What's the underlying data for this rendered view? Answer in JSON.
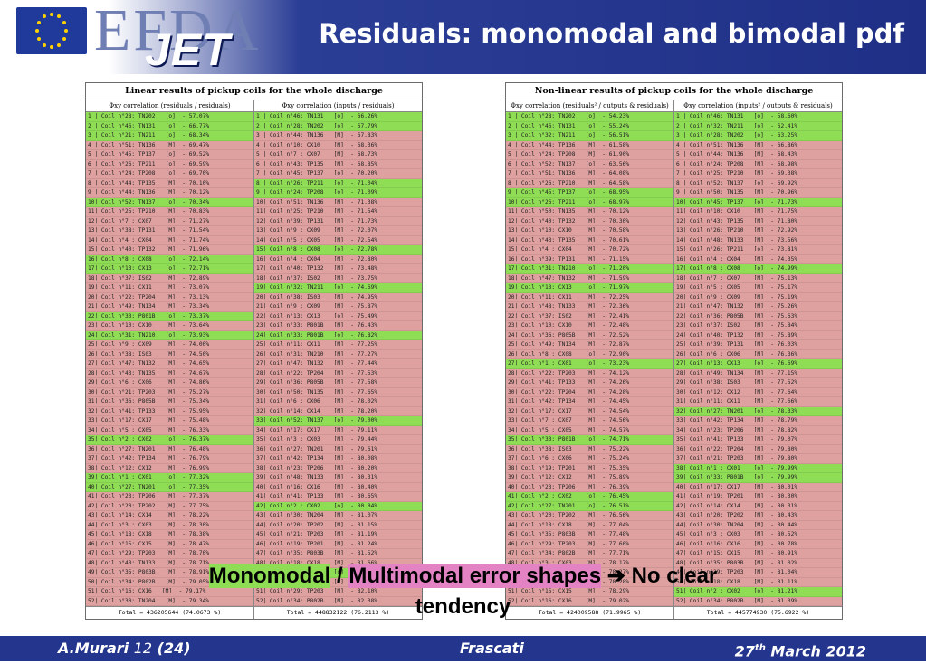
{
  "header": {
    "title": "Residuals: monomodal and bimodal pdf",
    "logo_efda": "EFDA",
    "logo_jet": "JET"
  },
  "left_table": {
    "title": "Linear results of pickup coils for the whole discharge",
    "col1": "Φxy correlation (residuals / residuals)",
    "col2": "Φxy correlation (inputs / residuals)",
    "rows1": [
      [
        "g",
        "1 | Coil n°28: TN202   [o]  - 57.07%"
      ],
      [
        "g",
        "2 | Coil n°46: TN131   [o]  - 66.77%"
      ],
      [
        "g",
        "3 | Coil n°21: TN211   [o]  - 68.34%"
      ],
      [
        "p",
        "4 | Coil n°51: TN136   [M]  - 69.47%"
      ],
      [
        "p",
        "5 | Coil n°45: TP137   [o]  - 69.52%"
      ],
      [
        "p",
        "6 | Coil n°26: TP211   [o]  - 69.59%"
      ],
      [
        "p",
        "7 | Coil n°24: TP208   [o]  - 69.70%"
      ],
      [
        "p",
        "8 | Coil n°44: TP135   [M]  - 70.10%"
      ],
      [
        "p",
        "9 | Coil n°44: TN136   [M]  - 70.12%"
      ],
      [
        "g",
        "10| Coil n°52: TN137   [o]  - 70.34%"
      ],
      [
        "p",
        "11| Coil n°25: TP210   [M]  - 70.83%"
      ],
      [
        "p",
        "12| Coil n°7 : CX07    [M]  - 71.27%"
      ],
      [
        "p",
        "13| Coil n°38: TP131   [M]  - 71.54%"
      ],
      [
        "p",
        "14| Coil n°4 : CX04    [M]  - 71.74%"
      ],
      [
        "p",
        "15| Coil n°40: TP132   [M]  - 71.96%"
      ],
      [
        "g",
        "16| Coil n°8 : CX08    [o]  - 72.14%"
      ],
      [
        "g",
        "17| Coil n°13: CX13    [o]  - 72.71%"
      ],
      [
        "p",
        "18| Coil n°37: IS02    [M]  - 72.89%"
      ],
      [
        "p",
        "19| Coil n°11: CX11    [M]  - 73.07%"
      ],
      [
        "p",
        "20| Coil n°22: TP204   [M]  - 73.13%"
      ],
      [
        "p",
        "21| Coil n°49: TN134   [M]  - 73.34%"
      ],
      [
        "g",
        "22| Coil n°33: P801B   [o]  - 73.37%"
      ],
      [
        "p",
        "23| Coil n°10: CX10    [M]  - 73.64%"
      ],
      [
        "g",
        "24| Coil n°31: TN210   [o]  - 73.93%"
      ],
      [
        "p",
        "25| Coil n°9 : CX09    [M]  - 74.00%"
      ],
      [
        "p",
        "26| Coil n°38: IS03    [M]  - 74.50%"
      ],
      [
        "p",
        "27| Coil n°47: TN132   [M]  - 74.65%"
      ],
      [
        "p",
        "28| Coil n°43: TN135   [M]  - 74.67%"
      ],
      [
        "p",
        "29| Coil n°6 : CX06    [M]  - 74.86%"
      ],
      [
        "p",
        "30| Coil n°21: TP203   [M]  - 75.27%"
      ],
      [
        "p",
        "31| Coil n°36: P805B   [M]  - 75.34%"
      ],
      [
        "p",
        "32| Coil n°41: TP133   [M]  - 75.95%"
      ],
      [
        "p",
        "33| Coil n°17: CX17    [M]  - 75.48%"
      ],
      [
        "p",
        "34| Coil n°5 : CX05    [M]  - 76.33%"
      ],
      [
        "g",
        "35| Coil n°2 : CX02    [o]  - 76.37%"
      ],
      [
        "p",
        "36| Coil n°27: TN201   [M]  - 76.48%"
      ],
      [
        "p",
        "37| Coil n°42: TP134   [M]  - 76.79%"
      ],
      [
        "p",
        "38| Coil n°12: CX12    [M]  - 76.99%"
      ],
      [
        "g",
        "39| Coil n°1 : CX01    [o]  - 77.32%"
      ],
      [
        "g",
        "40| Coil n°27: TN201   [o]  - 77.35%"
      ],
      [
        "p",
        "41| Coil n°23: TP206   [M]  - 77.37%"
      ],
      [
        "p",
        "42| Coil n°20: TP202   [M]  - 77.75%"
      ],
      [
        "p",
        "43| Coil n°14: CX14    [M]  - 78.22%"
      ],
      [
        "p",
        "44| Coil n°3 : CX03    [M]  - 78.30%"
      ],
      [
        "p",
        "45| Coil n°18: CX18    [M]  - 78.38%"
      ],
      [
        "p",
        "46| Coil n°15: CX15    [M]  - 78.47%"
      ],
      [
        "p",
        "47| Coil n°29: TP203   [M]  - 78.70%"
      ],
      [
        "p",
        "48| Coil n°48: TN133   [M]  - 78.71%"
      ],
      [
        "p",
        "49| Coil n°35: P803B   [M]  - 78.91%"
      ],
      [
        "p",
        "50| Coil n°34: P802B   [M]  - 79.05%"
      ],
      [
        "p",
        "51| Coil n°16: CX16   [M]  - 79.17%"
      ],
      [
        "p",
        "52| Coil n°30: TN204   [M]  - 79.34%"
      ]
    ],
    "rows2": [
      [
        "g",
        "1 | Coil n°46: TN131   [o]  - 66.26%"
      ],
      [
        "g",
        "2 | Coil n°28: TN202   [o]  - 67.79%"
      ],
      [
        "p",
        "3 | Coil n°44: TN136   [M]  - 67.83%"
      ],
      [
        "p",
        "4 | Coil n°10: CX10    [M]  - 68.36%"
      ],
      [
        "p",
        "5 | Coil n°7 : CX07    [M]  - 68.73%"
      ],
      [
        "p",
        "6 | Coil n°43: TP135   [M]  - 68.85%"
      ],
      [
        "p",
        "7 | Coil n°45: TP137   [o]  - 70.20%"
      ],
      [
        "g",
        "8 | Coil n°26: TP211   [o]  - 71.04%"
      ],
      [
        "g",
        "9 | Coil n°24: TP208   [o]  - 71.09%"
      ],
      [
        "p",
        "10| Coil n°51: TN136   [M]  - 71.38%"
      ],
      [
        "p",
        "11| Coil n°25: TP210   [M]  - 71.54%"
      ],
      [
        "p",
        "12| Coil n°39: TP131   [M]  - 71.73%"
      ],
      [
        "p",
        "13| Coil n°9 : CX09    [M]  - 72.07%"
      ],
      [
        "p",
        "14| Coil n°5 : CX05    [M]  - 72.54%"
      ],
      [
        "g",
        "15| Coil n°8 : CX08    [o]  - 72.78%"
      ],
      [
        "p",
        "16| Coil n°4 : CX04    [M]  - 72.80%"
      ],
      [
        "p",
        "17| Coil n°40: TP132   [M]  - 73.48%"
      ],
      [
        "p",
        "18| Coil n°37: IS02    [M]  - 73.75%"
      ],
      [
        "g",
        "19| Coil n°32: TN211   [o]  - 74.69%"
      ],
      [
        "p",
        "20| Coil n°38: IS03    [M]  - 74.95%"
      ],
      [
        "p",
        "21| Coil n°9 : CX09    [M]  - 75.87%"
      ],
      [
        "p",
        "22| Coil n°13: CX13    [o]  - 75.49%"
      ],
      [
        "p",
        "23| Coil n°33: P801B   [M]  - 76.43%"
      ],
      [
        "g",
        "24| Coil n°33: P801B   [o]  - 76.82%"
      ],
      [
        "p",
        "25| Coil n°11: CX11    [M]  - 77.25%"
      ],
      [
        "p",
        "26| Coil n°31: TN210   [M]  - 77.27%"
      ],
      [
        "p",
        "27| Coil n°47: TN132   [M]  - 77.44%"
      ],
      [
        "p",
        "28| Coil n°22: TP204   [M]  - 77.53%"
      ],
      [
        "p",
        "29| Coil n°36: P805B   [M]  - 77.58%"
      ],
      [
        "p",
        "30| Coil n°50: TN135   [M]  - 77.65%"
      ],
      [
        "p",
        "31| Coil n°6 : CX06    [M]  - 78.02%"
      ],
      [
        "p",
        "32| Coil n°14: CX14    [M]  - 78.20%"
      ],
      [
        "g",
        "33| Coil n°52: TN137   [o]  - 79.00%"
      ],
      [
        "p",
        "34| Coil n°17: CX17    [M]  - 79.11%"
      ],
      [
        "p",
        "35| Coil n°3 : CX03    [M]  - 79.44%"
      ],
      [
        "p",
        "36| Coil n°27: TN201   [M]  - 79.61%"
      ],
      [
        "p",
        "37| Coil n°42: TP134   [M]  - 80.08%"
      ],
      [
        "p",
        "38| Coil n°23: TP206   [M]  - 80.20%"
      ],
      [
        "p",
        "39| Coil n°48: TN133   [M]  - 80.31%"
      ],
      [
        "p",
        "40| Coil n°16: CX16    [M]  - 80.40%"
      ],
      [
        "p",
        "41| Coil n°41: TP133   [M]  - 80.65%"
      ],
      [
        "g",
        "42| Coil n°2 : CX02    [o]  - 80.84%"
      ],
      [
        "p",
        "43| Coil n°30: TN204   [M]  - 81.07%"
      ],
      [
        "p",
        "44| Coil n°20: TP202   [M]  - 81.15%"
      ],
      [
        "p",
        "45| Coil n°21: TP203   [M]  - 81.19%"
      ],
      [
        "p",
        "46| Coil n°19: TP201   [M]  - 81.24%"
      ],
      [
        "p",
        "47| Coil n°35: P803B   [M]  - 81.52%"
      ],
      [
        "p",
        "48| Coil n°18: CX18    [M]  - 81.66%"
      ],
      [
        "g",
        "49| Coil n°1 : CX01    [o]  - 81.74%"
      ],
      [
        "p",
        "50| Coil n°15: CX15    [M]  - 81.87%"
      ],
      [
        "p",
        "51| Coil n°29: TP203   [M]  - 82.10%"
      ],
      [
        "p",
        "52| Coil n°34: P802B   [M]  - 82.38%"
      ]
    ],
    "total1": "Total = 436205644 (74.0673 %)",
    "total2": "Total = 448832122 (76.2113 %)"
  },
  "right_table": {
    "title": "Non-linear results of pickup coils for the whole discharge",
    "col1": "Φxy correlation (residuals² / outputs & residuals)",
    "col2": "Φxy correlation (inputs² / outputs & residuals)",
    "rows1": [
      [
        "g",
        "1 | Coil n°28: TN202   [o]  - 54.23%"
      ],
      [
        "g",
        "2 | Coil n°46: TN131   [o]  - 55.24%"
      ],
      [
        "g",
        "3 | Coil n°32: TN211   [o]  - 56.51%"
      ],
      [
        "p",
        "4 | Coil n°44: TP136   [M]  - 61.58%"
      ],
      [
        "p",
        "5 | Coil n°24: TP208   [M]  - 61.90%"
      ],
      [
        "p",
        "6 | Coil n°52: TN137   [o]  - 63.56%"
      ],
      [
        "p",
        "7 | Coil n°51: TN136   [M]  - 64.08%"
      ],
      [
        "p",
        "8 | Coil n°26: TP210   [M]  - 64.58%"
      ],
      [
        "g",
        "9 | Coil n°45: TP137   [o]  - 68.95%"
      ],
      [
        "g",
        "10| Coil n°26: TP211   [o]  - 68.97%"
      ],
      [
        "p",
        "11| Coil n°50: TN135   [M]  - 70.12%"
      ],
      [
        "p",
        "12| Coil n°40: TP132   [M]  - 70.30%"
      ],
      [
        "p",
        "13| Coil n°10: CX10    [M]  - 70.58%"
      ],
      [
        "p",
        "14| Coil n°43: TP135   [M]  - 70.61%"
      ],
      [
        "p",
        "15| Coil n°4 : CX04    [M]  - 70.72%"
      ],
      [
        "p",
        "16| Coil n°39: TP131   [M]  - 71.15%"
      ],
      [
        "g",
        "17| Coil n°31: TN210   [o]  - 71.20%"
      ],
      [
        "p",
        "18| Coil n°47: TN132   [M]  - 71.59%"
      ],
      [
        "g",
        "19| Coil n°13: CX13    [o]  - 71.97%"
      ],
      [
        "p",
        "20| Coil n°11: CX11    [M]  - 72.25%"
      ],
      [
        "p",
        "21| Coil n°48: TN133   [M]  - 72.36%"
      ],
      [
        "p",
        "22| Coil n°37: IS02    [M]  - 72.41%"
      ],
      [
        "p",
        "23| Coil n°10: CX10    [M]  - 72.48%"
      ],
      [
        "p",
        "24| Coil n°36: P805B   [M]  - 72.52%"
      ],
      [
        "p",
        "25| Coil n°49: TN134   [M]  - 72.87%"
      ],
      [
        "p",
        "26| Coil n°8 : CX08    [o]  - 72.90%"
      ],
      [
        "g",
        "27| Coil n°1 : CX01    [o]  - 73.23%"
      ],
      [
        "p",
        "28| Coil n°22: TP203   [M]  - 74.12%"
      ],
      [
        "p",
        "29| Coil n°41: TP133   [M]  - 74.26%"
      ],
      [
        "p",
        "30| Coil n°22: TP204   [M]  - 74.28%"
      ],
      [
        "p",
        "31| Coil n°42: TP134   [M]  - 74.45%"
      ],
      [
        "p",
        "32| Coil n°17: CX17    [M]  - 74.54%"
      ],
      [
        "p",
        "33| Coil n°7 : CX07    [M]  - 74.56%"
      ],
      [
        "p",
        "34| Coil n°5 : CX05    [M]  - 74.57%"
      ],
      [
        "g",
        "35| Coil n°33: P801B   [o]  - 74.71%"
      ],
      [
        "p",
        "36| Coil n°38: IS03    [M]  - 75.22%"
      ],
      [
        "p",
        "37| Coil n°6 : CX06    [M]  - 75.24%"
      ],
      [
        "p",
        "38| Coil n°19: TP201   [M]  - 75.35%"
      ],
      [
        "p",
        "39| Coil n°12: CX12    [M]  - 75.89%"
      ],
      [
        "p",
        "40| Coil n°23: TP206   [M]  - 76.39%"
      ],
      [
        "g",
        "41| Coil n°2 : CX02    [o]  - 76.45%"
      ],
      [
        "g",
        "42| Coil n°27: TN201   [o]  - 76.51%"
      ],
      [
        "p",
        "43| Coil n°20: TP202   [M]  - 76.56%"
      ],
      [
        "p",
        "44| Coil n°18: CX18    [M]  - 77.04%"
      ],
      [
        "p",
        "45| Coil n°35: P803B   [M]  - 77.48%"
      ],
      [
        "p",
        "46| Coil n°29: TP203   [M]  - 77.60%"
      ],
      [
        "p",
        "47| Coil n°34: P802B   [M]  - 77.71%"
      ],
      [
        "p",
        "48| Coil n°3 : CX03    [M]  - 78.17%"
      ],
      [
        "p",
        "49| Coil n°30: TN204   [M]  - 78.27%"
      ],
      [
        "p",
        "50| Coil n°14: CX14    [M]  - 78.28%"
      ],
      [
        "p",
        "51| Coil n°15: CX15    [M]  - 78.29%"
      ],
      [
        "p",
        "52| Coil n°16: CX16    [M]  - 79.02%"
      ]
    ],
    "rows2": [
      [
        "g",
        "1 | Coil n°46: TN131   [o]  - 58.60%"
      ],
      [
        "g",
        "2 | Coil n°32: TN211   [o]  - 62.41%"
      ],
      [
        "g",
        "3 | Coil n°28: TN202   [o]  - 63.25%"
      ],
      [
        "p",
        "4 | Coil n°51: TN136   [M]  - 66.86%"
      ],
      [
        "p",
        "5 | Coil n°44: TN136   [M]  - 68.43%"
      ],
      [
        "p",
        "6 | Coil n°24: TP208   [M]  - 68.98%"
      ],
      [
        "p",
        "7 | Coil n°25: TP210   [M]  - 69.38%"
      ],
      [
        "p",
        "8 | Coil n°52: TN137   [o]  - 69.92%"
      ],
      [
        "p",
        "9 | Coil n°50: TN135   [M]  - 70.96%"
      ],
      [
        "g",
        "10| Coil n°45: TP137   [o]  - 71.73%"
      ],
      [
        "p",
        "11| Coil n°10: CX10    [M]  - 71.75%"
      ],
      [
        "p",
        "12| Coil n°43: TP135   [M]  - 71.80%"
      ],
      [
        "p",
        "13| Coil n°26: TP210   [M]  - 72.92%"
      ],
      [
        "p",
        "14| Coil n°48: TN133   [M]  - 73.56%"
      ],
      [
        "p",
        "15| Coil n°26: TP211   [o]  - 73.81%"
      ],
      [
        "p",
        "16| Coil n°4 : CX04    [M]  - 74.35%"
      ],
      [
        "g",
        "17| Coil n°8 : CX08    [o]  - 74.99%"
      ],
      [
        "p",
        "18| Coil n°7 : CX07    [M]  - 75.13%"
      ],
      [
        "p",
        "19| Coil n°5 : CX05    [M]  - 75.17%"
      ],
      [
        "p",
        "20| Coil n°9 : CX09    [M]  - 75.19%"
      ],
      [
        "p",
        "21| Coil n°47: TN132   [M]  - 75.26%"
      ],
      [
        "p",
        "22| Coil n°36: P805B   [M]  - 75.63%"
      ],
      [
        "p",
        "23| Coil n°37: IS02    [M]  - 75.84%"
      ],
      [
        "p",
        "24| Coil n°40: TP132   [M]  - 75.89%"
      ],
      [
        "p",
        "25| Coil n°39: TP131   [M]  - 76.03%"
      ],
      [
        "p",
        "26| Coil n°6 : CX06    [M]  - 76.36%"
      ],
      [
        "g",
        "27| Coil n°13: CX13    [o]  - 76.69%"
      ],
      [
        "p",
        "28| Coil n°49: TN134   [M]  - 77.15%"
      ],
      [
        "p",
        "29| Coil n°38: IS03    [M]  - 77.52%"
      ],
      [
        "p",
        "30| Coil n°12: CX12    [M]  - 77.64%"
      ],
      [
        "p",
        "31| Coil n°11: CX11    [M]  - 77.66%"
      ],
      [
        "g",
        "32| Coil n°27: TN201   [o]  - 78.33%"
      ],
      [
        "p",
        "33| Coil n°42: TP134   [M]  - 78.79%"
      ],
      [
        "p",
        "34| Coil n°23: TP206   [M]  - 78.82%"
      ],
      [
        "p",
        "35| Coil n°41: TP133   [M]  - 79.07%"
      ],
      [
        "p",
        "36| Coil n°22: TP204   [M]  - 79.80%"
      ],
      [
        "p",
        "37| Coil n°21: TP203   [M]  - 79.80%"
      ],
      [
        "g",
        "38| Coil n°1 : CX01    [o]  - 79.99%"
      ],
      [
        "g",
        "39| Coil n°33: P801B   [o]  - 79.99%"
      ],
      [
        "p",
        "40| Coil n°17: CX17    [M]  - 80.01%"
      ],
      [
        "p",
        "41| Coil n°19: TP201   [M]  - 80.30%"
      ],
      [
        "p",
        "42| Coil n°14: CX14    [M]  - 80.31%"
      ],
      [
        "p",
        "43| Coil n°20: TP202   [M]  - 80.43%"
      ],
      [
        "p",
        "44| Coil n°30: TN204   [M]  - 80.44%"
      ],
      [
        "p",
        "45| Coil n°3 : CX03    [M]  - 80.52%"
      ],
      [
        "p",
        "46| Coil n°16: CX16    [M]  - 80.78%"
      ],
      [
        "p",
        "47| Coil n°15: CX15    [M]  - 80.91%"
      ],
      [
        "p",
        "48| Coil n°35: P803B   [M]  - 81.02%"
      ],
      [
        "p",
        "49| Coil n°29: TP203   [M]  - 81.04%"
      ],
      [
        "p",
        "50| Coil n°18: CX18    [M]  - 81.11%"
      ],
      [
        "g",
        "51| Coil n°2 : CX02    [o]  - 81.21%"
      ],
      [
        "p",
        "52| Coil n°34: P802B   [M]  - 81.39%"
      ]
    ],
    "total1": "Total = 424009588 (71.9965 %)",
    "total2": "Total = 445774930 (75.6922 %)"
  },
  "caption": {
    "monomodal": "Monomodal",
    "sep": " / ",
    "multimodal": "Multimodal error shapes",
    "arrow": "➔",
    "rest_line1": "No clear",
    "line2": "tendency"
  },
  "footer": {
    "author": "A.Murari",
    "page": "12",
    "total": "(24)",
    "location": "Frascati",
    "date_day": "27",
    "date_sup": "th",
    "date_rest": "March 2012"
  },
  "colors": {
    "green": "#8fdc55",
    "pink": "#dfa0a0",
    "header_blue": "#23358c"
  }
}
